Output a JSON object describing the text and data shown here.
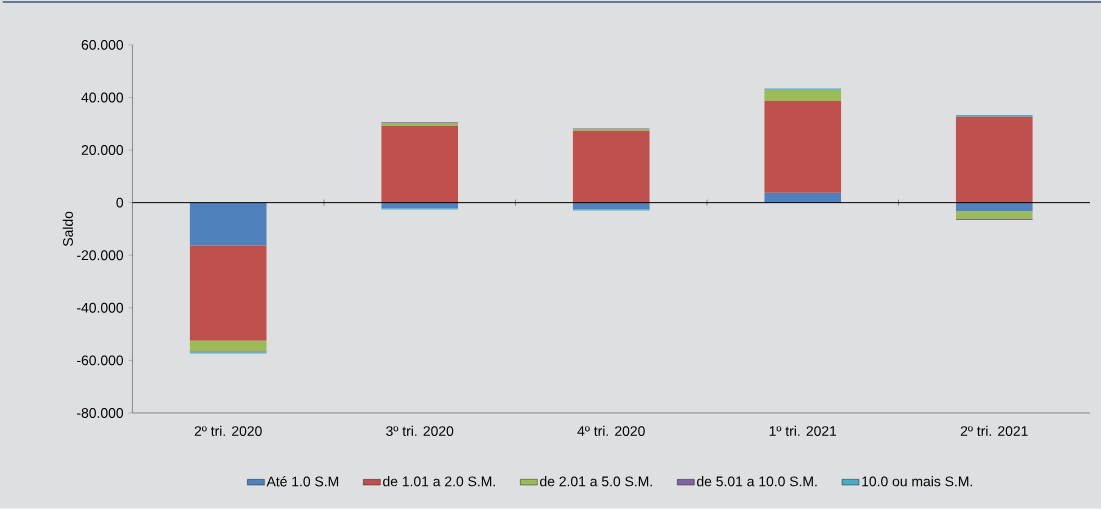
{
  "chart_data": {
    "type": "bar",
    "stacked": true,
    "ylabel": "Saldo",
    "categories": [
      "2º tri. 2020",
      "3º tri. 2020",
      "4º tri. 2020",
      "1º tri. 2021",
      "2º tri. 2021"
    ],
    "series": [
      {
        "name": "Até 1.0 S.M",
        "color": "#4f81bd",
        "values": [
          -16.3,
          -2.2,
          -2.6,
          3.8,
          -3.4
        ]
      },
      {
        "name": "de 1.01 a 2.0 S.M.",
        "color": "#c0504d",
        "values": [
          -36.2,
          29.1,
          27.2,
          34.9,
          32.8
        ]
      },
      {
        "name": "de 2.01 a 5.0 S.M.",
        "color": "#9bbb59",
        "values": [
          -4.1,
          1.1,
          0.7,
          4.2,
          -2.8
        ]
      },
      {
        "name": "de 5.01 a 10.0 S.M.",
        "color": "#8064a2",
        "values": [
          -0.3,
          0.4,
          0.3,
          null,
          -0.4
        ]
      },
      {
        "name": "10.0 ou mais S.M.",
        "color": "#4bacc6",
        "values": [
          -0.5,
          -0.4,
          -0.4,
          0.5,
          0.5
        ]
      }
    ],
    "ylim": [
      -80,
      60
    ],
    "yticks": [
      {
        "value": -80,
        "label": "-80.000"
      },
      {
        "value": -60,
        "label": "-60.000"
      },
      {
        "value": -40,
        "label": "-40.000"
      },
      {
        "value": -20,
        "label": "-20.000"
      },
      0,
      {
        "value": 20,
        "label": "20.000"
      },
      {
        "value": 40,
        "label": "40.000"
      },
      {
        "value": 60,
        "label": "60.000"
      }
    ],
    "legend": "bottom"
  }
}
